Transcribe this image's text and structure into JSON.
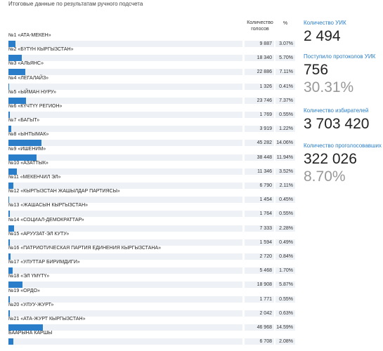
{
  "header": {
    "title": "Итоговые данные по результатам ручного подсчета"
  },
  "table": {
    "columns": [
      "Количество голосов",
      "%"
    ],
    "rows": [
      {
        "name": "№1 «АТА-МЕКЕН»",
        "votes": "9 887",
        "percent": 3.07,
        "percent_label": "3.07%"
      },
      {
        "name": "№2 «БҮТҮН КЫРГЫЗСТАН»",
        "votes": "18 340",
        "percent": 5.7,
        "percent_label": "5.70%"
      },
      {
        "name": "№3 «АЛЬЯНС»",
        "votes": "22 886",
        "percent": 7.11,
        "percent_label": "7.11%"
      },
      {
        "name": "№4 «ЛЕГАЛАЙЗ»",
        "votes": "1 326",
        "percent": 0.41,
        "percent_label": "0.41%"
      },
      {
        "name": "№5 «ЫЙМАН НУРУ»",
        "votes": "23 746",
        "percent": 7.37,
        "percent_label": "7.37%"
      },
      {
        "name": "№6 «КҮЧТҮҮ РЕГИОН»",
        "votes": "1 769",
        "percent": 0.55,
        "percent_label": "0.55%"
      },
      {
        "name": "№7 «БАГЫТ»",
        "votes": "3 919",
        "percent": 1.22,
        "percent_label": "1.22%"
      },
      {
        "name": "№8 «ЫНТЫМАК»",
        "votes": "45 282",
        "percent": 14.06,
        "percent_label": "14.06%"
      },
      {
        "name": "№9 «ИШЕНИМ»",
        "votes": "38 448",
        "percent": 11.94,
        "percent_label": "11.94%"
      },
      {
        "name": "№10 «АЗАТТЫК»",
        "votes": "11 346",
        "percent": 3.52,
        "percent_label": "3.52%"
      },
      {
        "name": "№11 «МЕКЕНЧИЛ ЭЛ»",
        "votes": "6 790",
        "percent": 2.11,
        "percent_label": "2.11%"
      },
      {
        "name": "№12 «КЫРГЫЗСТАН ЖАШЫЛДАР ПАРТИЯСЫ»",
        "votes": "1 454",
        "percent": 0.45,
        "percent_label": "0.45%"
      },
      {
        "name": "№13 «ЖАШАСЫН КЫРГЫЗСТАН»",
        "votes": "1 764",
        "percent": 0.55,
        "percent_label": "0.55%"
      },
      {
        "name": "№14 «СОЦИАЛ-ДЕМОКРАТТАР»",
        "votes": "7 333",
        "percent": 2.28,
        "percent_label": "2.28%"
      },
      {
        "name": "№15 «АРУУЗАТ-ЭЛ КУТУ»",
        "votes": "1 594",
        "percent": 0.49,
        "percent_label": "0.49%"
      },
      {
        "name": "№16 «ПАТРИОТИЧЕСКАЯ ПАРТИЯ ЕДИНЕНИЯ КЫРГЫЗСТАНА»",
        "votes": "2 720",
        "percent": 0.84,
        "percent_label": "0.84%"
      },
      {
        "name": "№17 «УЛУТТАР БИРИМДИГИ»",
        "votes": "5 468",
        "percent": 1.7,
        "percent_label": "1.70%"
      },
      {
        "name": "№18 «ЭЛ ҮМҮТҮ»",
        "votes": "18 908",
        "percent": 5.87,
        "percent_label": "5.87%"
      },
      {
        "name": "№19 «ОРДО»",
        "votes": "1 771",
        "percent": 0.55,
        "percent_label": "0.55%"
      },
      {
        "name": "№20 «УЛУУ-ЖУРТ»",
        "votes": "2 042",
        "percent": 0.63,
        "percent_label": "0.63%"
      },
      {
        "name": "№21 «АТА-ЖУРТ КЫРГЫЗСТАН»",
        "votes": "46 968",
        "percent": 14.59,
        "percent_label": "14.59%"
      },
      {
        "name": "БААРЫНА КАРШЫ",
        "votes": "6 708",
        "percent": 2.08,
        "percent_label": "2.08%"
      }
    ]
  },
  "stats": [
    {
      "label": "Количество УИК",
      "value": "2 494"
    },
    {
      "label": "Поступило протоколов УИК",
      "value": "756",
      "secondary": "30.31%"
    },
    {
      "label": "Количество избирателей",
      "value": "3 703 420"
    },
    {
      "label": "Количество проголосовавших",
      "value": "322 026",
      "secondary": "8.70%"
    }
  ]
}
